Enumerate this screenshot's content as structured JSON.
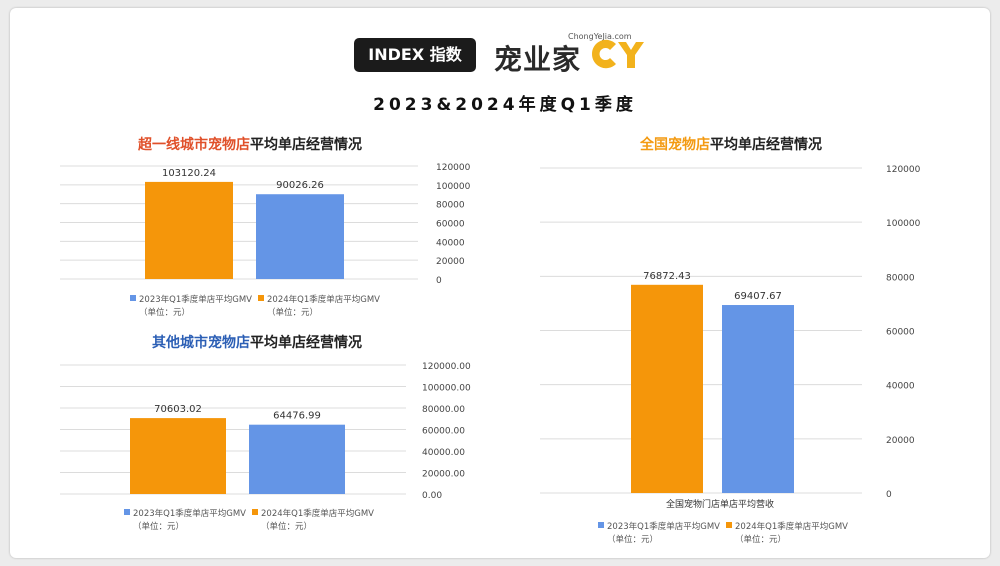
{
  "header": {
    "badge": "INDEX 指数",
    "brand_name": "宠业家",
    "brand_domain": "ChongYeJia.com",
    "title": "2023&2024年度Q1季度"
  },
  "colors": {
    "orange": "#f5960a",
    "blue": "#6495e6",
    "accent_red": "#e0502a",
    "accent_blue": "#2c5fb5",
    "accent_orange": "#f39a12",
    "grid": "#dcdcdc"
  },
  "legend_unit": "（单位：元）",
  "chart_titles": {
    "tier1": {
      "accent": "超一线城市宠物店",
      "rest": "平均单店经营情况"
    },
    "other": {
      "accent": "其他城市宠物店",
      "rest": "平均单店经营情况"
    },
    "national": {
      "accent": "全国宠物店",
      "rest": "平均单店经营情况"
    }
  },
  "chart_data": [
    {
      "id": "tier1",
      "type": "bar",
      "categories": [
        ""
      ],
      "series": [
        {
          "name": "2024年Q1季度单店平均GMV",
          "values": [
            103120.24
          ],
          "label": "103120.24"
        },
        {
          "name": "2023年Q1季度单店平均GMV",
          "values": [
            90026.26
          ],
          "label": "90026.26"
        }
      ],
      "ylim": [
        0,
        120000
      ],
      "yticks": [
        "0",
        "20000",
        "40000",
        "60000",
        "80000",
        "100000",
        "120000"
      ],
      "grid": true,
      "legend": "bottom"
    },
    {
      "id": "other",
      "type": "bar",
      "categories": [
        ""
      ],
      "series": [
        {
          "name": "2024年Q1季度单店平均GMV",
          "values": [
            70603.02
          ],
          "label": "70603.02"
        },
        {
          "name": "2023年Q1季度单店平均GMV",
          "values": [
            64476.99
          ],
          "label": "64476.99"
        }
      ],
      "ylim": [
        0,
        120000
      ],
      "yticks": [
        "0.00",
        "20000.00",
        "40000.00",
        "60000.00",
        "80000.00",
        "100000.00",
        "120000.00"
      ],
      "grid": true,
      "legend": "bottom"
    },
    {
      "id": "national",
      "type": "bar",
      "categories": [
        "全国宠物门店单店平均营收"
      ],
      "series": [
        {
          "name": "2024年Q1季度单店平均GMV",
          "values": [
            76872.43
          ],
          "label": "76872.43"
        },
        {
          "name": "2023年Q1季度单店平均GMV",
          "values": [
            69407.67
          ],
          "label": "69407.67"
        }
      ],
      "ylim": [
        0,
        120000
      ],
      "yticks": [
        "0",
        "20000",
        "40000",
        "60000",
        "80000",
        "100000",
        "120000"
      ],
      "grid": true,
      "legend": "bottom"
    }
  ]
}
